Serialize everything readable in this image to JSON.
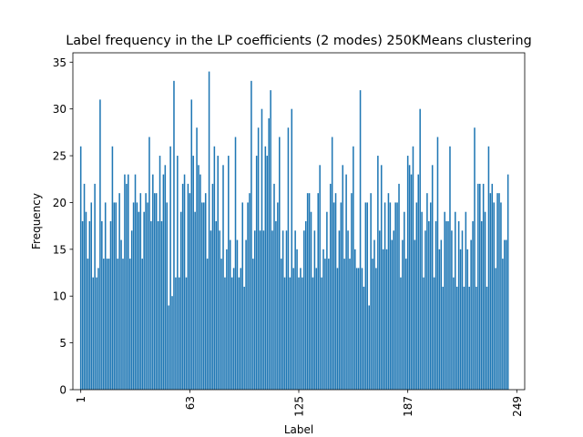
{
  "chart_data": {
    "type": "bar",
    "title": "Label frequency in the LP coefficients (2 modes) 250KMeans clustering",
    "xlabel": "Label",
    "ylabel": "Frequency",
    "ylim": [
      0,
      36
    ],
    "yticks": [
      0,
      5,
      10,
      15,
      20,
      25,
      30,
      35
    ],
    "xticks": [
      1,
      63,
      125,
      187,
      249
    ],
    "xtick_labels": [
      "1",
      "63",
      "125",
      "187",
      "249"
    ],
    "xlim": [
      -3.5,
      253.5
    ],
    "bar_color": "#1f77b4",
    "grid": false,
    "series": [
      {
        "values": [
          26,
          18,
          22,
          19,
          14,
          18,
          20,
          12,
          22,
          12,
          13,
          31,
          18,
          14,
          20,
          14,
          14,
          18,
          26,
          20,
          20,
          14,
          21,
          16,
          14,
          23,
          22,
          23,
          14,
          17,
          20,
          23,
          20,
          19,
          21,
          14,
          19,
          21,
          20,
          27,
          18,
          23,
          21,
          21,
          18,
          25,
          18,
          23,
          24,
          20,
          9,
          26,
          10,
          33,
          12,
          25,
          12,
          19,
          22,
          23,
          12,
          22,
          21,
          31,
          25,
          19,
          28,
          24,
          23,
          20,
          20,
          21,
          14,
          34,
          17,
          22,
          26,
          18,
          25,
          17,
          14,
          24,
          12,
          15,
          25,
          16,
          12,
          13,
          27,
          16,
          12,
          13,
          20,
          11,
          16,
          20,
          21,
          33,
          14,
          17,
          25,
          28,
          17,
          30,
          17,
          26,
          25,
          29,
          32,
          17,
          22,
          18,
          20,
          27,
          14,
          17,
          12,
          17,
          28,
          12,
          30,
          13,
          17,
          15,
          12,
          13,
          12,
          17,
          18,
          21,
          21,
          19,
          12,
          17,
          13,
          21,
          24,
          12,
          15,
          14,
          19,
          14,
          22,
          27,
          20,
          21,
          13,
          17,
          20,
          24,
          14,
          23,
          17,
          14,
          21,
          26,
          15,
          13,
          13,
          32,
          13,
          11,
          20,
          20,
          9,
          21,
          14,
          16,
          13,
          25,
          17,
          24,
          15,
          20,
          15,
          21,
          20,
          16,
          17,
          20,
          20,
          22,
          12,
          16,
          19,
          14,
          25,
          24,
          23,
          26,
          16,
          20,
          23,
          30,
          19,
          12,
          17,
          21,
          18,
          20,
          24,
          12,
          18,
          27,
          15,
          16,
          11,
          19,
          18,
          18,
          26,
          17,
          12,
          19,
          11,
          18,
          15,
          17,
          11,
          19,
          15,
          11,
          16,
          18,
          28,
          11,
          22,
          22,
          18,
          22,
          19,
          11,
          26,
          21,
          22,
          20,
          13,
          21,
          21,
          20,
          14,
          16,
          16,
          23
        ]
      }
    ]
  }
}
